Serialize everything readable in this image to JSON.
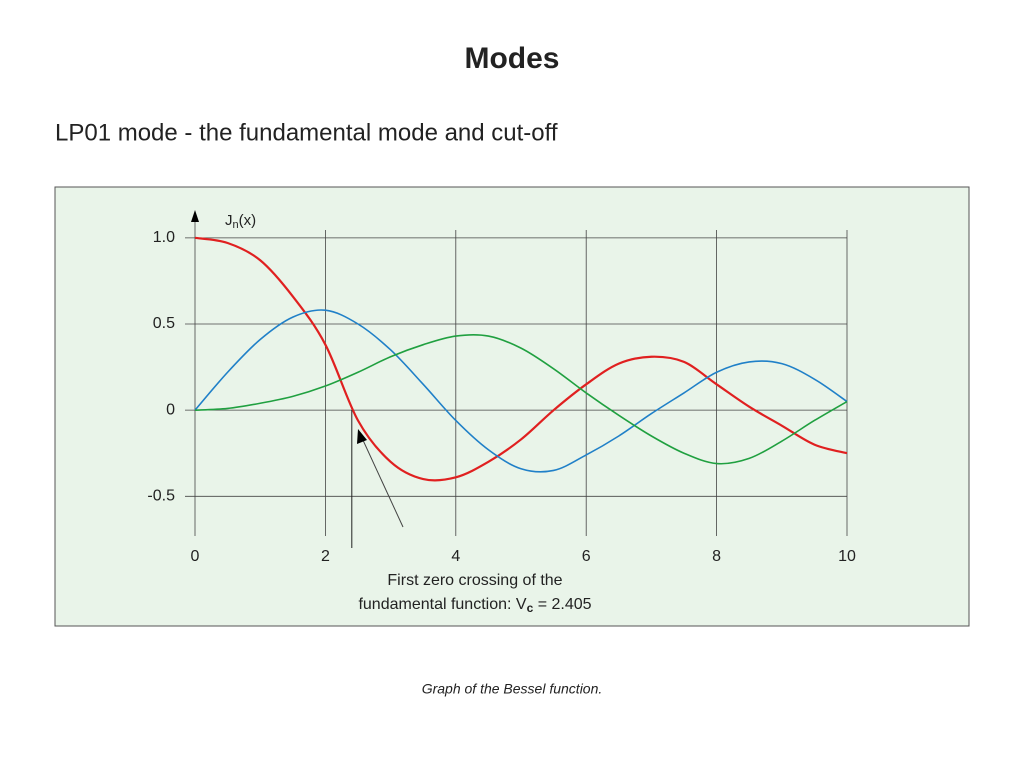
{
  "title": "Modes",
  "subtitle": "LP01 mode - the fundamental mode and cut-off",
  "caption": "Graph of the Bessel function.",
  "chart_data": {
    "type": "line",
    "y_label": {
      "base": "J",
      "subscript": "n",
      "rest": "(x)"
    },
    "x": [
      0,
      0.5,
      1,
      1.5,
      2,
      2.5,
      3,
      3.5,
      4,
      4.5,
      5,
      5.5,
      6,
      6.5,
      7,
      7.5,
      8,
      8.5,
      9,
      9.5,
      10
    ],
    "series": [
      {
        "color": "#e02020",
        "values": [
          1.0,
          0.97,
          0.87,
          0.66,
          0.38,
          -0.06,
          -0.3,
          -0.4,
          -0.39,
          -0.3,
          -0.17,
          0.0,
          0.15,
          0.27,
          0.31,
          0.28,
          0.15,
          0.02,
          -0.09,
          -0.2,
          -0.25
        ]
      },
      {
        "color": "#2080c8",
        "values": [
          0,
          0.22,
          0.41,
          0.54,
          0.58,
          0.5,
          0.35,
          0.15,
          -0.06,
          -0.23,
          -0.34,
          -0.35,
          -0.26,
          -0.15,
          -0.02,
          0.1,
          0.22,
          0.28,
          0.27,
          0.18,
          0.05
        ]
      },
      {
        "color": "#20a040",
        "values": [
          0,
          0.01,
          0.04,
          0.08,
          0.14,
          0.22,
          0.31,
          0.38,
          0.43,
          0.43,
          0.36,
          0.24,
          0.1,
          -0.03,
          -0.15,
          -0.25,
          -0.31,
          -0.28,
          -0.18,
          -0.06,
          0.05
        ]
      }
    ],
    "xlim": [
      0,
      10
    ],
    "xticks": [
      0,
      2,
      4,
      6,
      8,
      10
    ],
    "ylim": [
      -0.8,
      1.15
    ],
    "yticks": [
      {
        "value": 1.0,
        "label": "1.0"
      },
      0.5,
      0,
      -0.5
    ],
    "grid": true,
    "annotation": {
      "lines": [
        "First zero crossing of the",
        "fundamental function: V"
      ],
      "subscript": "c",
      "rest": " = 2.405",
      "x": 2.405
    }
  }
}
